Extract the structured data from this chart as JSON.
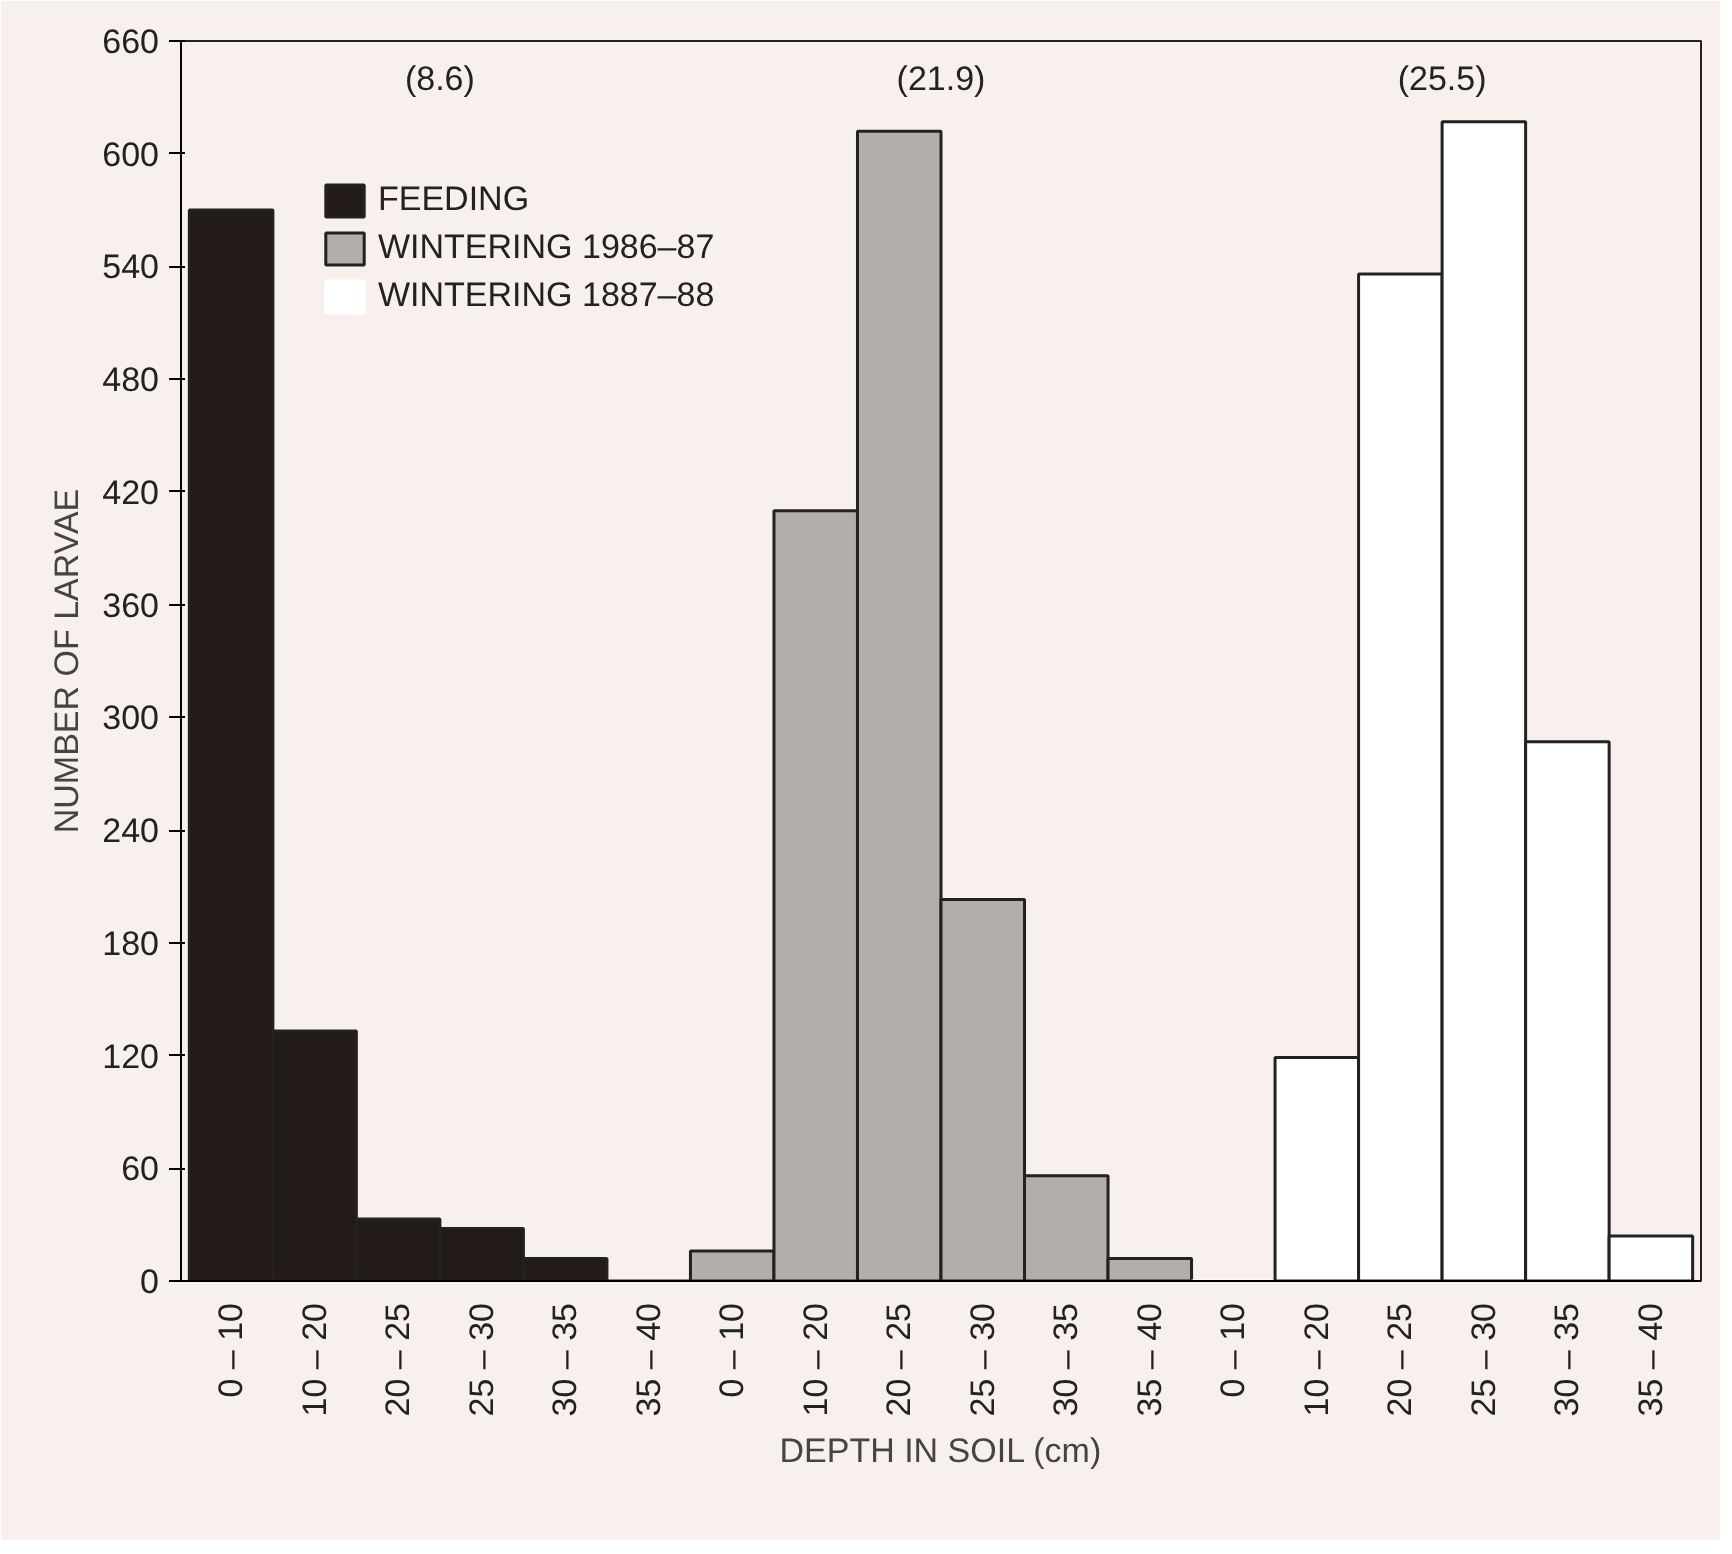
{
  "chart_data": {
    "type": "bar",
    "xlabel": "DEPTH IN SOIL (cm)",
    "ylabel": "NUMBER OF LARVAE",
    "categories": [
      "0 – 10",
      "10 – 20",
      "20 – 25",
      "25 – 30",
      "30 – 35",
      "35 – 40",
      "0 – 10",
      "10 – 20",
      "20 – 25",
      "25 – 30",
      "30 – 35",
      "35 – 40",
      "0 – 10",
      "10 – 20",
      "20 – 25",
      "25 – 30",
      "30 – 35",
      "35 – 40"
    ],
    "series": [
      {
        "name": "FEEDING",
        "color": "#231a1a",
        "values": [
          570,
          133,
          33,
          28,
          12,
          0,
          null,
          null,
          null,
          null,
          null,
          null,
          null,
          null,
          null,
          null,
          null,
          null
        ]
      },
      {
        "name": "WINTERING 1986–87",
        "color": "#b3adab",
        "values": [
          null,
          null,
          null,
          null,
          null,
          null,
          16,
          410,
          612,
          203,
          56,
          12,
          null,
          null,
          null,
          null,
          null,
          null
        ]
      },
      {
        "name": "WINTERING 1887–88",
        "color": "#ffffff",
        "values": [
          null,
          null,
          null,
          null,
          null,
          null,
          null,
          null,
          null,
          null,
          null,
          null,
          0,
          119,
          536,
          617,
          287,
          24
        ]
      }
    ],
    "annotations": [
      "(8.6)",
      "(21.9)",
      "(25.5)"
    ],
    "ylim": [
      0,
      660
    ],
    "yticks": [
      0,
      60,
      120,
      180,
      240,
      300,
      360,
      420,
      480,
      540,
      600,
      660
    ],
    "legend": "top left",
    "grid": false
  }
}
